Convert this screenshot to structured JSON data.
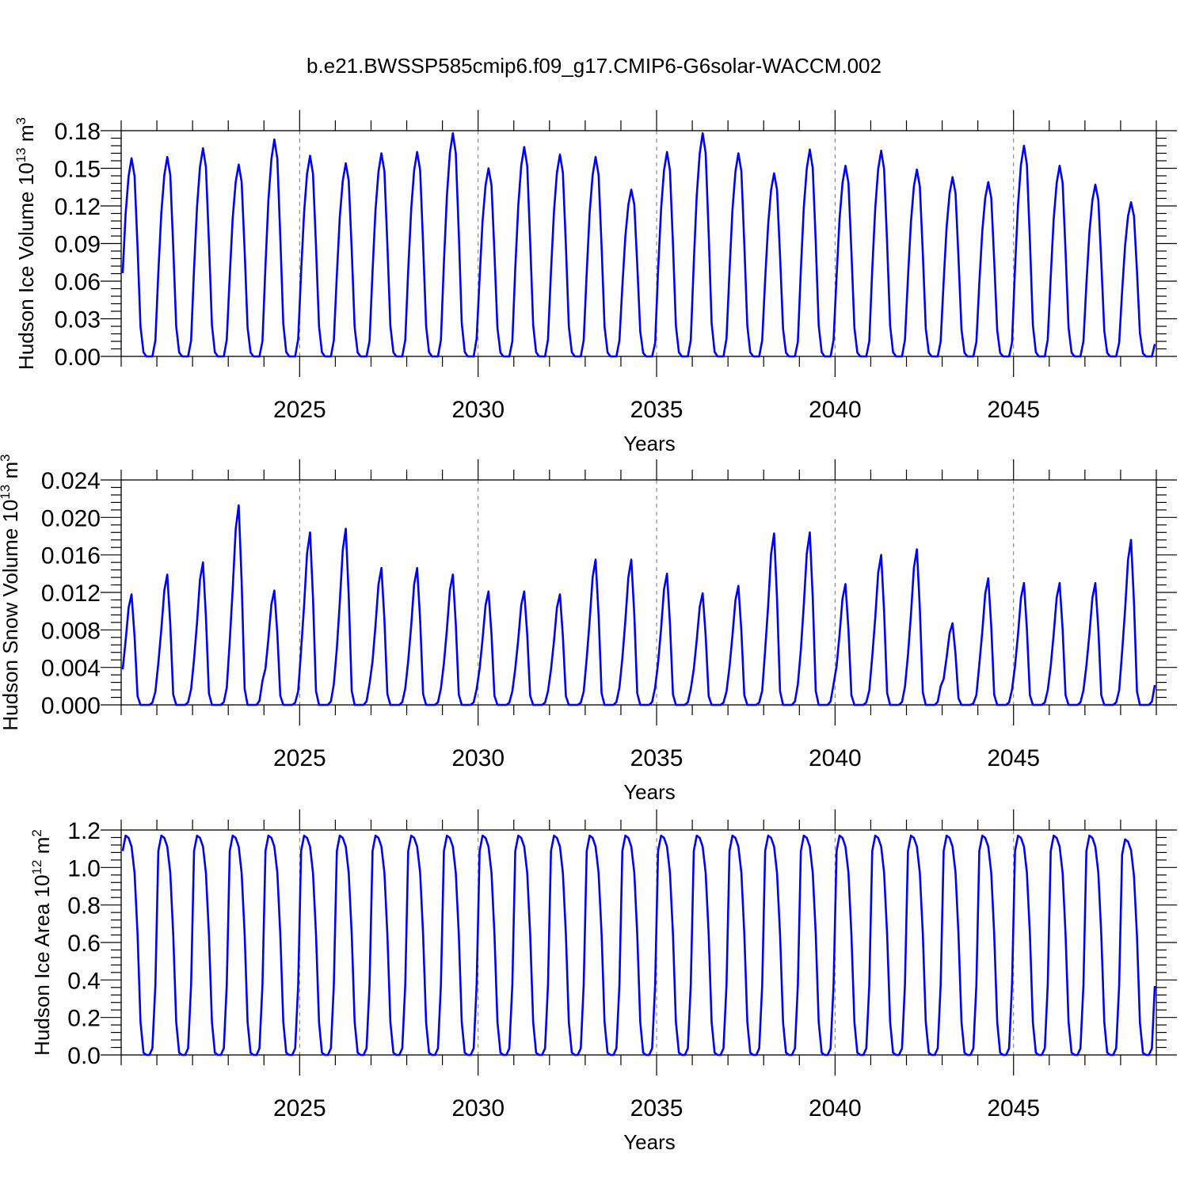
{
  "figure_title": "b.e21.BWSSP585cmip6.f09_g17.CMIP6-G6solar-WACCM.002",
  "colors": {
    "line": "#0000ff",
    "axes": "#000000",
    "grid": "#777777"
  },
  "chart_data": [
    {
      "type": "line",
      "ylabel_main": "Hudson Ice Volume 10",
      "ylabel_exp": "13",
      "ylabel_unit": " m",
      "ylabel_unit_exp": "3",
      "xlabel": "Years",
      "xlim": [
        2020.0,
        2049.0
      ],
      "ylim": [
        0.0,
        0.18
      ],
      "yticks": [
        "0.00",
        "0.03",
        "0.06",
        "0.09",
        "0.12",
        "0.15",
        "0.18"
      ],
      "xticks": [
        "2025",
        "2030",
        "2035",
        "2040",
        "2045"
      ],
      "grid_x": [
        2025,
        2030,
        2035,
        2040,
        2045
      ],
      "start": 2020.0,
      "step": 0.08333333,
      "peaks": [
        0.158,
        0.159,
        0.166,
        0.153,
        0.173,
        0.16,
        0.154,
        0.162,
        0.163,
        0.178,
        0.15,
        0.167,
        0.161,
        0.159,
        0.133,
        0.163,
        0.178,
        0.162,
        0.146,
        0.165,
        0.152,
        0.164,
        0.149,
        0.143,
        0.139,
        0.168,
        0.152,
        0.137,
        0.123
      ],
      "series": [
        {
          "name": "Hudson Ice Volume",
          "values": []
        }
      ]
    },
    {
      "type": "line",
      "ylabel_main": "Hudson Snow Volume 10",
      "ylabel_exp": "13",
      "ylabel_unit": " m",
      "ylabel_unit_exp": "3",
      "xlabel": "Years",
      "xlim": [
        2020.0,
        2049.0
      ],
      "ylim": [
        0.0,
        0.024
      ],
      "yticks": [
        "0.000",
        "0.004",
        "0.008",
        "0.012",
        "0.016",
        "0.020",
        "0.024"
      ],
      "xticks": [
        "2025",
        "2030",
        "2035",
        "2040",
        "2045"
      ],
      "grid_x": [
        2025,
        2030,
        2035,
        2040,
        2045
      ],
      "start": 2020.0,
      "step": 0.08333333,
      "peaks": [
        0.0118,
        0.0139,
        0.0152,
        0.0213,
        0.0122,
        0.0184,
        0.0188,
        0.0146,
        0.0146,
        0.0139,
        0.0121,
        0.0121,
        0.0118,
        0.0155,
        0.0155,
        0.014,
        0.0119,
        0.0127,
        0.0183,
        0.0184,
        0.0129,
        0.016,
        0.0166,
        0.0087,
        0.0135,
        0.013,
        0.013,
        0.013,
        0.0176
      ],
      "series": [
        {
          "name": "Hudson Snow Volume",
          "values": []
        }
      ]
    },
    {
      "type": "line",
      "ylabel_main": "Hudson Ice Area 10",
      "ylabel_exp": "12",
      "ylabel_unit": " m",
      "ylabel_unit_exp": "2",
      "xlabel": "Years",
      "xlim": [
        2020.0,
        2049.0
      ],
      "ylim": [
        0.0,
        1.2
      ],
      "yticks": [
        "0.0",
        "0.2",
        "0.4",
        "0.6",
        "0.8",
        "1.0",
        "1.2"
      ],
      "xticks": [
        "2025",
        "2030",
        "2035",
        "2040",
        "2045"
      ],
      "grid_x": [
        2025,
        2030,
        2035,
        2040,
        2045
      ],
      "start": 2020.0,
      "step": 0.08333333,
      "peaks": [
        1.17,
        1.17,
        1.17,
        1.17,
        1.17,
        1.17,
        1.17,
        1.17,
        1.17,
        1.17,
        1.17,
        1.17,
        1.17,
        1.17,
        1.17,
        1.17,
        1.17,
        1.17,
        1.17,
        1.17,
        1.17,
        1.17,
        1.17,
        1.17,
        1.17,
        1.17,
        1.17,
        1.17,
        1.15
      ],
      "series": [
        {
          "name": "Hudson Ice Area",
          "values": []
        }
      ]
    }
  ]
}
